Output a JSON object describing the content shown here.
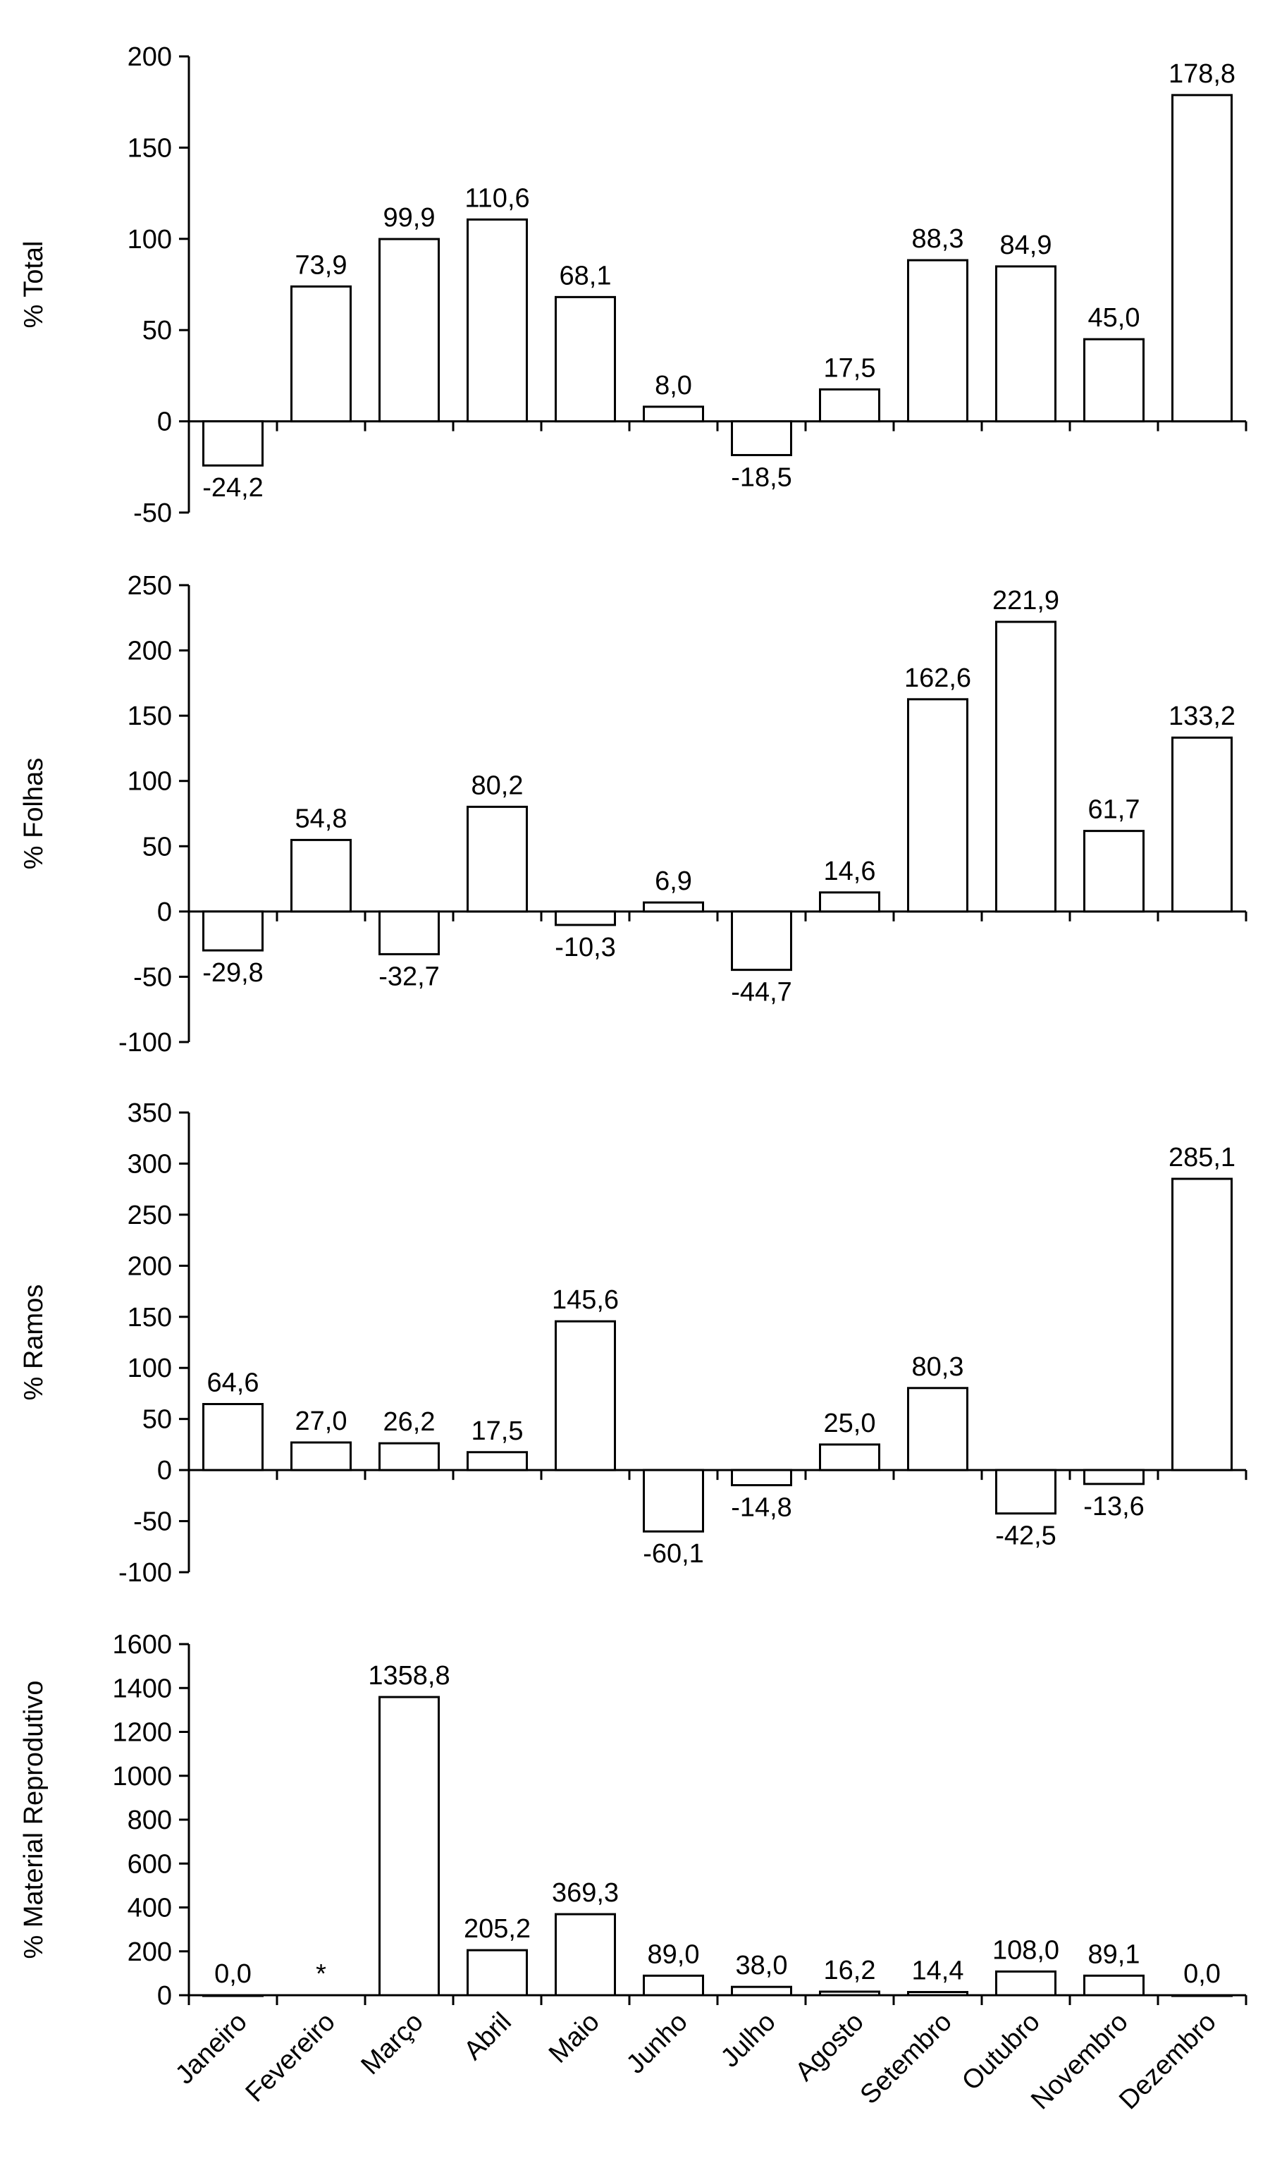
{
  "chart_data": [
    {
      "type": "bar",
      "ylabel": "% Total",
      "ylim": [
        -50,
        200
      ],
      "yticks": [
        200,
        150,
        100,
        50,
        0,
        -50
      ],
      "ytick_labels": [
        "200",
        "150",
        "100",
        "50",
        "0",
        "-50"
      ],
      "categories": [
        "Janeiro",
        "Fevereiro",
        "Março",
        "Abril",
        "Maio",
        "Junho",
        "Julho",
        "Agosto",
        "Setembro",
        "Outubro",
        "Novembro",
        "Dezembro"
      ],
      "values": [
        -24.2,
        73.9,
        99.9,
        110.6,
        68.1,
        8.0,
        -18.5,
        17.5,
        88.3,
        84.9,
        45.0,
        178.8
      ],
      "labels": [
        "-24,2",
        "73,9",
        "99,9",
        "110,6",
        "68,1",
        "8,0",
        "-18,5",
        "17,5",
        "88,3",
        "84,9",
        "45,0",
        "178,8"
      ],
      "show_category_labels": false
    },
    {
      "type": "bar",
      "ylabel": "% Folhas",
      "ylim": [
        -100,
        250
      ],
      "yticks": [
        250,
        200,
        150,
        100,
        50,
        0,
        -50,
        -100
      ],
      "ytick_labels": [
        "250",
        "200",
        "150",
        "100",
        "50",
        "0",
        "-50",
        "-100"
      ],
      "categories": [
        "Janeiro",
        "Fevereiro",
        "Março",
        "Abril",
        "Maio",
        "Junho",
        "Julho",
        "Agosto",
        "Setembro",
        "Outubro",
        "Novembro",
        "Dezembro"
      ],
      "values": [
        -29.8,
        54.8,
        -32.7,
        80.2,
        -10.3,
        6.9,
        -44.7,
        14.6,
        162.6,
        221.9,
        61.7,
        133.2
      ],
      "labels": [
        "-29,8",
        "54,8",
        "-32,7",
        "80,2",
        "-10,3",
        "6,9",
        "-44,7",
        "14,6",
        "162,6",
        "221,9",
        "61,7",
        "133,2"
      ],
      "show_category_labels": false
    },
    {
      "type": "bar",
      "ylabel": "% Ramos",
      "ylim": [
        -100,
        350
      ],
      "yticks": [
        350,
        300,
        250,
        200,
        150,
        100,
        50,
        0,
        -50,
        -100
      ],
      "ytick_labels": [
        "350",
        "300",
        "250",
        "200",
        "150",
        "100",
        "50",
        "0",
        "-50",
        "-100"
      ],
      "categories": [
        "Janeiro",
        "Fevereiro",
        "Março",
        "Abril",
        "Maio",
        "Junho",
        "Julho",
        "Agosto",
        "Setembro",
        "Outubro",
        "Novembro",
        "Dezembro"
      ],
      "values": [
        64.6,
        27.0,
        26.2,
        17.5,
        145.6,
        -60.1,
        -14.8,
        25.0,
        80.3,
        -42.5,
        -13.6,
        285.1
      ],
      "labels": [
        "64,6",
        "27,0",
        "26,2",
        "17,5",
        "145,6",
        "-60,1",
        "-14,8",
        "25,0",
        "80,3",
        "-42,5",
        "-13,6",
        "285,1"
      ],
      "show_category_labels": false
    },
    {
      "type": "bar",
      "ylabel": "% Material Reprodutivo",
      "ylim": [
        0,
        1600
      ],
      "yticks": [
        1600,
        1400,
        1200,
        1000,
        800,
        600,
        400,
        200,
        0
      ],
      "ytick_labels": [
        "1600",
        "1400",
        "1200",
        "1000",
        "800",
        "600",
        "400",
        "200",
        "0"
      ],
      "categories": [
        "Janeiro",
        "Fevereiro",
        "Março",
        "Abril",
        "Maio",
        "Junho",
        "Julho",
        "Agosto",
        "Setembro",
        "Outubro",
        "Novembro",
        "Dezembro"
      ],
      "values": [
        0.0,
        null,
        1358.8,
        205.2,
        369.3,
        89.0,
        38.0,
        16.2,
        14.4,
        108.0,
        89.1,
        0.0
      ],
      "labels": [
        "0,0",
        "*",
        "1358,8",
        "205,2",
        "369,3",
        "89,0",
        "38,0",
        "16,2",
        "14,4",
        "108,0",
        "89,1",
        "0,0"
      ],
      "show_category_labels": true
    }
  ]
}
